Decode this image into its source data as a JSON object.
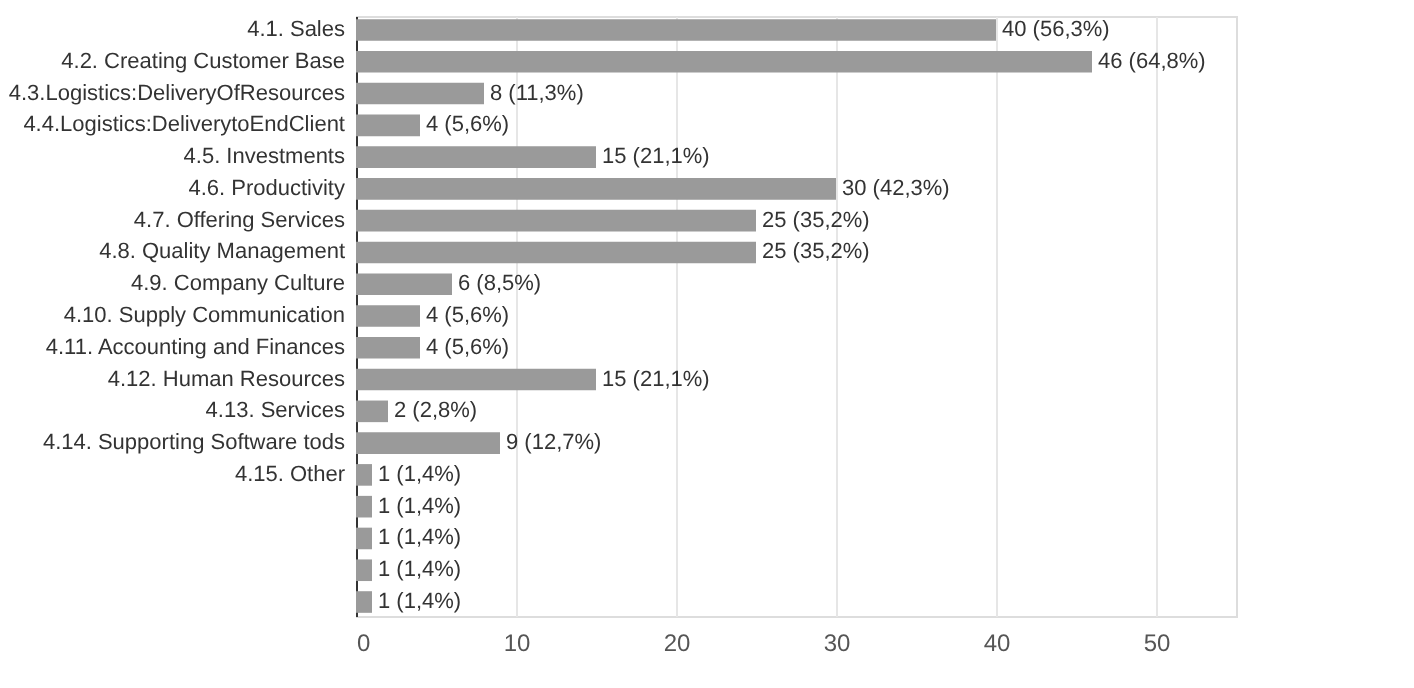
{
  "chart_data": {
    "type": "bar",
    "orientation": "horizontal",
    "categories": [
      "4.1. Sales",
      "4.2. Creating Customer Base",
      "4.3.Logistics:DeliveryOfResources",
      "4.4.Logistics:DeliverytoEndClient",
      "4.5. Investments",
      "4.6. Productivity",
      "4.7. Offering Services",
      "4.8. Quality Management",
      "4.9. Company Culture",
      "4.10. Supply Communication",
      "4.11. Accounting and Finances",
      "4.12. Human Resources",
      "4.13. Services",
      "4.14. Supporting Software tods",
      "4.15. Other",
      null,
      null,
      null,
      null
    ],
    "values": [
      40,
      46,
      8,
      4,
      15,
      30,
      25,
      25,
      6,
      4,
      4,
      15,
      2,
      9,
      1,
      1,
      1,
      1,
      1
    ],
    "value_labels": [
      "40 (56,3%)",
      "46 (64,8%)",
      "8 (11,3%)",
      "4 (5,6%)",
      "15 (21,1%)",
      "30 (42,3%)",
      "25 (35,2%)",
      "25 (35,2%)",
      "6 (8,5%)",
      "4 (5,6%)",
      "4 (5,6%)",
      "15 (21,1%)",
      "2 (2,8%)",
      "9 (12,7%)",
      "1 (1,4%)",
      "1 (1,4%)",
      "1 (1,4%)",
      "1 (1,4%)",
      "1 (1,4%)"
    ],
    "color": "#9a9a9a",
    "xlim": [
      0,
      55
    ],
    "xticks": [
      0,
      10,
      20,
      30,
      40,
      50
    ],
    "grid": "x"
  }
}
